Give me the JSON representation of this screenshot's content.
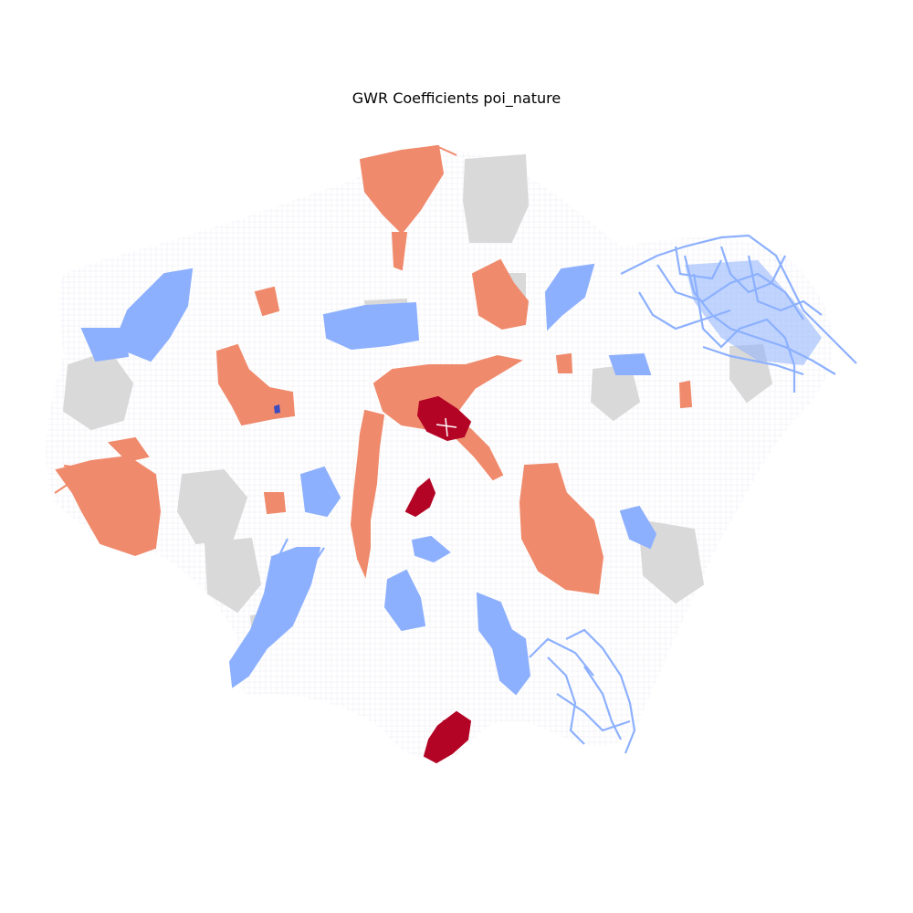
{
  "figure": {
    "title": "GWR Coefficients poi_nature"
  },
  "classes": [
    {
      "key": "strong_positive",
      "color": "#b40426"
    },
    {
      "key": "positive",
      "color": "#f08a6c"
    },
    {
      "key": "not_significant",
      "color": "#d9d9d9"
    },
    {
      "key": "negative",
      "color": "#8db0fe"
    },
    {
      "key": "strong_negative",
      "color": "#3b4cc0"
    },
    {
      "key": "background_network",
      "color": "#eef0f6"
    }
  ]
}
